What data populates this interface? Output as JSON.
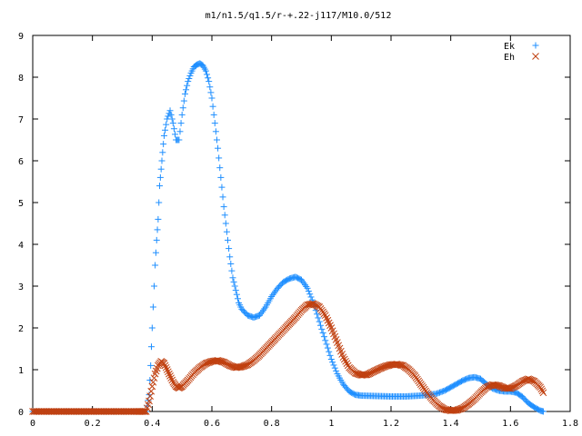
{
  "chart_data": {
    "type": "scatter",
    "title": "m1/n1.5/q1.5/r-+.22-j117/M10.0/512",
    "xlabel": "",
    "ylabel": "",
    "xlim": [
      0,
      1.8
    ],
    "ylim": [
      0,
      9
    ],
    "x_ticks": [
      "0",
      "0.2",
      "0.4",
      "0.6",
      "0.8",
      "1",
      "1.2",
      "1.4",
      "1.6",
      "1.8"
    ],
    "y_ticks": [
      "0",
      "1",
      "2",
      "3",
      "4",
      "5",
      "6",
      "7",
      "8",
      "9"
    ],
    "grid": false,
    "legend_position": "top-right",
    "series": [
      {
        "name": "Ek",
        "marker": "plus",
        "color": "#1f8fff",
        "points": [
          [
            0,
            0
          ],
          [
            0.35,
            0
          ],
          [
            0.38,
            0
          ],
          [
            0.39,
            0.4
          ],
          [
            0.395,
            1.1
          ],
          [
            0.4,
            2.0
          ],
          [
            0.41,
            3.5
          ],
          [
            0.415,
            4.1
          ],
          [
            0.42,
            4.6
          ],
          [
            0.425,
            5.4
          ],
          [
            0.43,
            5.8
          ],
          [
            0.435,
            6.2
          ],
          [
            0.44,
            6.6
          ],
          [
            0.45,
            7.0
          ],
          [
            0.46,
            7.2
          ],
          [
            0.47,
            6.9
          ],
          [
            0.48,
            6.5
          ],
          [
            0.49,
            6.5
          ],
          [
            0.5,
            7.1
          ],
          [
            0.51,
            7.6
          ],
          [
            0.52,
            7.9
          ],
          [
            0.53,
            8.1
          ],
          [
            0.54,
            8.25
          ],
          [
            0.55,
            8.3
          ],
          [
            0.56,
            8.33
          ],
          [
            0.57,
            8.28
          ],
          [
            0.58,
            8.15
          ],
          [
            0.59,
            7.9
          ],
          [
            0.6,
            7.5
          ],
          [
            0.61,
            6.9
          ],
          [
            0.62,
            6.3
          ],
          [
            0.63,
            5.6
          ],
          [
            0.64,
            4.9
          ],
          [
            0.65,
            4.3
          ],
          [
            0.66,
            3.7
          ],
          [
            0.67,
            3.2
          ],
          [
            0.68,
            2.9
          ],
          [
            0.69,
            2.6
          ],
          [
            0.7,
            2.45
          ],
          [
            0.72,
            2.3
          ],
          [
            0.74,
            2.25
          ],
          [
            0.76,
            2.3
          ],
          [
            0.78,
            2.5
          ],
          [
            0.8,
            2.75
          ],
          [
            0.82,
            2.95
          ],
          [
            0.84,
            3.1
          ],
          [
            0.86,
            3.18
          ],
          [
            0.88,
            3.22
          ],
          [
            0.9,
            3.15
          ],
          [
            0.92,
            2.95
          ],
          [
            0.94,
            2.6
          ],
          [
            0.96,
            2.15
          ],
          [
            0.98,
            1.7
          ],
          [
            1.0,
            1.25
          ],
          [
            1.02,
            0.9
          ],
          [
            1.04,
            0.65
          ],
          [
            1.06,
            0.48
          ],
          [
            1.08,
            0.4
          ],
          [
            1.1,
            0.38
          ],
          [
            1.15,
            0.37
          ],
          [
            1.2,
            0.36
          ],
          [
            1.25,
            0.36
          ],
          [
            1.3,
            0.38
          ],
          [
            1.35,
            0.42
          ],
          [
            1.38,
            0.5
          ],
          [
            1.4,
            0.58
          ],
          [
            1.42,
            0.66
          ],
          [
            1.44,
            0.74
          ],
          [
            1.46,
            0.8
          ],
          [
            1.48,
            0.82
          ],
          [
            1.5,
            0.78
          ],
          [
            1.52,
            0.65
          ],
          [
            1.54,
            0.55
          ],
          [
            1.56,
            0.5
          ],
          [
            1.58,
            0.48
          ],
          [
            1.6,
            0.48
          ],
          [
            1.62,
            0.45
          ],
          [
            1.64,
            0.35
          ],
          [
            1.66,
            0.2
          ],
          [
            1.68,
            0.1
          ],
          [
            1.7,
            0.02
          ],
          [
            1.71,
            0
          ]
        ]
      },
      {
        "name": "Eh",
        "marker": "cross",
        "color": "#c04010",
        "points": [
          [
            0,
            0
          ],
          [
            0.35,
            0
          ],
          [
            0.38,
            0
          ],
          [
            0.39,
            0.25
          ],
          [
            0.4,
            0.6
          ],
          [
            0.41,
            0.9
          ],
          [
            0.42,
            1.1
          ],
          [
            0.43,
            1.2
          ],
          [
            0.44,
            1.15
          ],
          [
            0.45,
            1.0
          ],
          [
            0.46,
            0.85
          ],
          [
            0.47,
            0.7
          ],
          [
            0.48,
            0.6
          ],
          [
            0.49,
            0.56
          ],
          [
            0.5,
            0.6
          ],
          [
            0.52,
            0.75
          ],
          [
            0.54,
            0.92
          ],
          [
            0.56,
            1.05
          ],
          [
            0.58,
            1.15
          ],
          [
            0.6,
            1.2
          ],
          [
            0.62,
            1.22
          ],
          [
            0.64,
            1.18
          ],
          [
            0.66,
            1.1
          ],
          [
            0.68,
            1.05
          ],
          [
            0.7,
            1.07
          ],
          [
            0.72,
            1.12
          ],
          [
            0.74,
            1.22
          ],
          [
            0.76,
            1.35
          ],
          [
            0.78,
            1.5
          ],
          [
            0.8,
            1.65
          ],
          [
            0.82,
            1.8
          ],
          [
            0.84,
            1.95
          ],
          [
            0.86,
            2.1
          ],
          [
            0.88,
            2.25
          ],
          [
            0.9,
            2.42
          ],
          [
            0.92,
            2.55
          ],
          [
            0.94,
            2.58
          ],
          [
            0.96,
            2.5
          ],
          [
            0.98,
            2.3
          ],
          [
            1.0,
            2.0
          ],
          [
            1.02,
            1.65
          ],
          [
            1.04,
            1.3
          ],
          [
            1.06,
            1.05
          ],
          [
            1.08,
            0.92
          ],
          [
            1.1,
            0.87
          ],
          [
            1.12,
            0.88
          ],
          [
            1.14,
            0.95
          ],
          [
            1.16,
            1.02
          ],
          [
            1.18,
            1.08
          ],
          [
            1.2,
            1.12
          ],
          [
            1.22,
            1.13
          ],
          [
            1.24,
            1.1
          ],
          [
            1.26,
            1.0
          ],
          [
            1.28,
            0.85
          ],
          [
            1.3,
            0.65
          ],
          [
            1.32,
            0.45
          ],
          [
            1.34,
            0.28
          ],
          [
            1.36,
            0.14
          ],
          [
            1.38,
            0.05
          ],
          [
            1.4,
            0.02
          ],
          [
            1.42,
            0.03
          ],
          [
            1.44,
            0.08
          ],
          [
            1.46,
            0.18
          ],
          [
            1.48,
            0.3
          ],
          [
            1.5,
            0.45
          ],
          [
            1.52,
            0.58
          ],
          [
            1.54,
            0.64
          ],
          [
            1.56,
            0.62
          ],
          [
            1.58,
            0.56
          ],
          [
            1.6,
            0.55
          ],
          [
            1.62,
            0.62
          ],
          [
            1.64,
            0.72
          ],
          [
            1.66,
            0.78
          ],
          [
            1.68,
            0.72
          ],
          [
            1.7,
            0.58
          ],
          [
            1.71,
            0.45
          ]
        ]
      }
    ]
  }
}
